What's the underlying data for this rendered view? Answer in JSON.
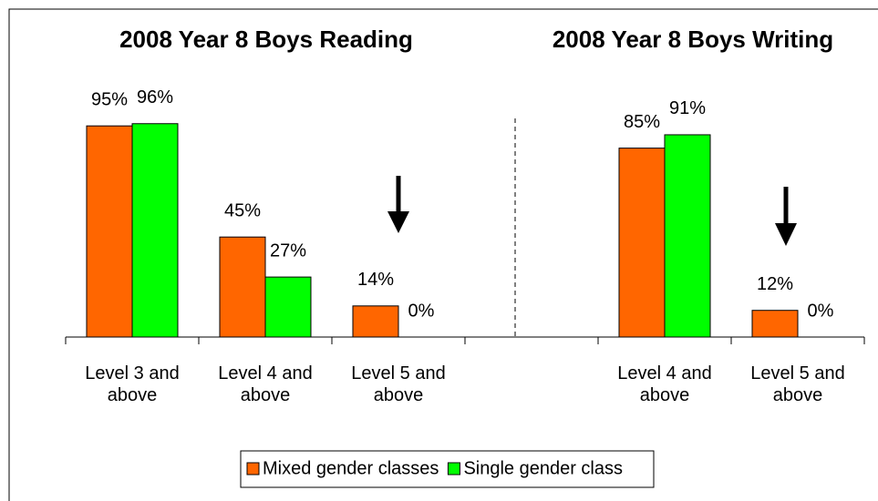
{
  "chart_data": [
    {
      "type": "bar",
      "title": "2008 Year 8 Boys Reading",
      "categories": [
        "Level 3 and above",
        "Level 4 and above",
        "Level 5 and above"
      ],
      "series": [
        {
          "name": "Mixed gender classes",
          "color": "#ff6600",
          "values": [
            95,
            45,
            14
          ],
          "value_labels": [
            "95%",
            "45%",
            "14%"
          ]
        },
        {
          "name": "Single gender class",
          "color": "#00ff00",
          "values": [
            96,
            27,
            0
          ],
          "value_labels": [
            "96%",
            "27%",
            "0%"
          ]
        }
      ],
      "ylim": [
        0,
        100
      ]
    },
    {
      "type": "bar",
      "title": "2008 Year 8 Boys Writing",
      "categories": [
        "Level 4 and above",
        "Level 5 and above"
      ],
      "series": [
        {
          "color": "#ff6600",
          "values": [
            85,
            12
          ],
          "value_labels": [
            "85%",
            "12%"
          ]
        },
        {
          "color": "#00ff00",
          "values": [
            91,
            0
          ],
          "value_labels": [
            "91%",
            "0%"
          ]
        }
      ],
      "ylim": [
        0,
        100
      ]
    }
  ]
}
